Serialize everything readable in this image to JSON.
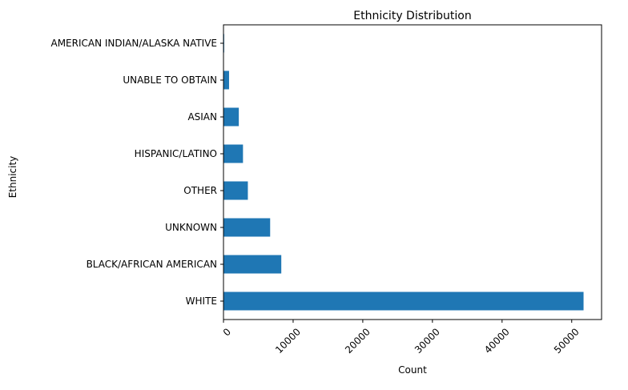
{
  "chart_data": {
    "type": "bar",
    "orientation": "horizontal",
    "title": "Ethnicity Distribution",
    "xlabel": "Count",
    "ylabel": "Ethnicity",
    "categories": [
      "WHITE",
      "BLACK/AFRICAN AMERICAN",
      "UNKNOWN",
      "OTHER",
      "HISPANIC/LATINO",
      "ASIAN",
      "UNABLE TO OBTAIN",
      "AMERICAN INDIAN/ALASKA NATIVE"
    ],
    "values": [
      51700,
      8300,
      6700,
      3500,
      2800,
      2200,
      800,
      100
    ],
    "xlim": [
      0,
      54285
    ],
    "xticks": [
      0,
      10000,
      20000,
      30000,
      40000,
      50000
    ],
    "xtick_labels": [
      "0",
      "10000",
      "20000",
      "30000",
      "40000",
      "50000"
    ],
    "xtick_rotation": 45,
    "bar_color": "#1f77b4",
    "grid": false,
    "legend": null
  }
}
